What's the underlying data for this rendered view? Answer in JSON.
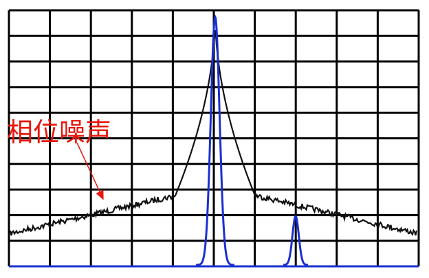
{
  "annotation": "相位噪声"
}
